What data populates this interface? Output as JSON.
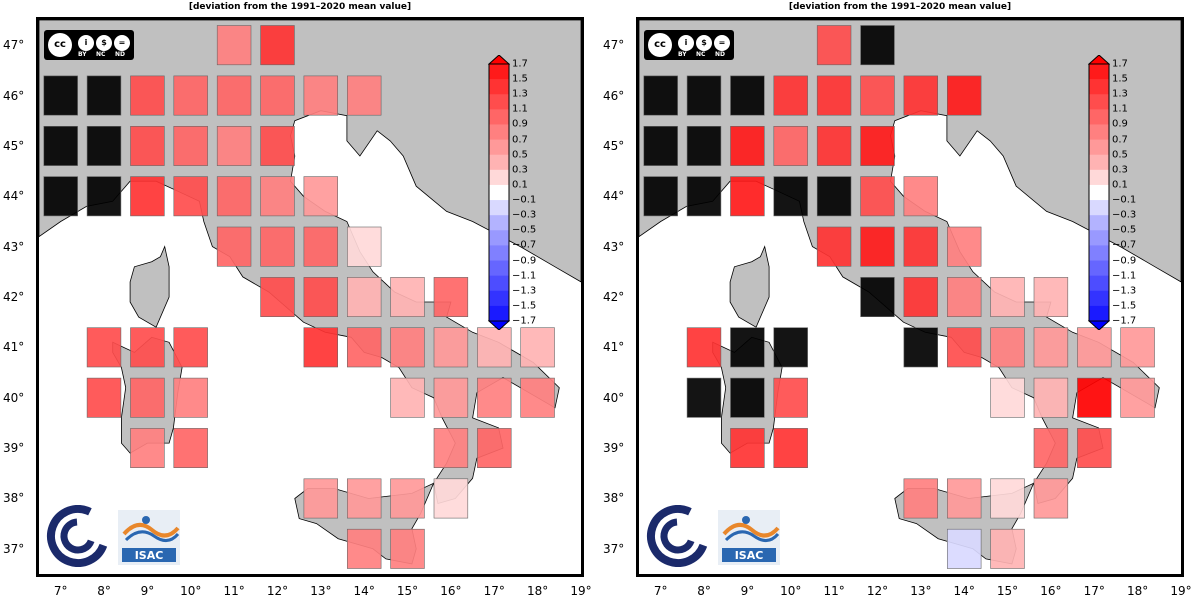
{
  "title": "[deviation from the 1991–2020 mean value]",
  "axes": {
    "x_ticks": [
      "7°",
      "8°",
      "9°",
      "10°",
      "11°",
      "12°",
      "13°",
      "14°",
      "15°",
      "16°",
      "17°",
      "18°",
      "19°"
    ],
    "y_ticks": [
      "47°",
      "46°",
      "45°",
      "44°",
      "43°",
      "42°",
      "41°",
      "40°",
      "39°",
      "38°",
      "37°"
    ],
    "lon_range": [
      6.5,
      19
    ],
    "lat_range": [
      36.5,
      47.5
    ]
  },
  "colorbar": {
    "labels": [
      "1.7",
      "1.5",
      "1.3",
      "1.1",
      "0.9",
      "0.7",
      "0.5",
      "0.3",
      "0.1",
      "−0.1",
      "−0.3",
      "−0.5",
      "−0.7",
      "−0.9",
      "−1.1",
      "−1.3",
      "−1.5",
      "−1.7"
    ],
    "colors": [
      "#ff0000",
      "#ff1a1a",
      "#ff3333",
      "#ff4d4d",
      "#ff6666",
      "#ff8080",
      "#ff9999",
      "#ffb3b3",
      "#ffd9d9",
      "#ffffff",
      "#d9d9ff",
      "#b3b3ff",
      "#9999ff",
      "#8080ff",
      "#6666ff",
      "#4d4dff",
      "#3333ff",
      "#1a1aff",
      "#0000ff"
    ]
  },
  "license": {
    "badge": "cc",
    "labels": [
      "BY",
      "NC",
      "ND"
    ]
  },
  "logos": {
    "right_logo_text": "ISAC"
  },
  "colors": {
    "land": "#c0c0c0",
    "sea": "#ffffff",
    "missing": "#000000"
  },
  "chart_data": [
    {
      "type": "heatmap",
      "title": "[deviation from the 1991–2020 mean value]",
      "cells": [
        {
          "lon": 11,
          "lat": 47,
          "value": 0.7
        },
        {
          "lon": 12,
          "lat": 47,
          "value": 1.3
        },
        {
          "lon": 7,
          "lat": 46,
          "value": null
        },
        {
          "lon": 8,
          "lat": 46,
          "value": null
        },
        {
          "lon": 9,
          "lat": 46,
          "value": 1.1
        },
        {
          "lon": 10,
          "lat": 46,
          "value": 1.0
        },
        {
          "lon": 11,
          "lat": 46,
          "value": 1.0
        },
        {
          "lon": 12,
          "lat": 46,
          "value": 1.0
        },
        {
          "lon": 13,
          "lat": 46,
          "value": 0.7
        },
        {
          "lon": 14,
          "lat": 46,
          "value": 0.8
        },
        {
          "lon": 7,
          "lat": 45,
          "value": null
        },
        {
          "lon": 8,
          "lat": 45,
          "value": null
        },
        {
          "lon": 9,
          "lat": 45,
          "value": 1.1
        },
        {
          "lon": 10,
          "lat": 45,
          "value": 1.0
        },
        {
          "lon": 11,
          "lat": 45,
          "value": 0.7
        },
        {
          "lon": 12,
          "lat": 45,
          "value": 1.2
        },
        {
          "lon": 7,
          "lat": 44,
          "value": null
        },
        {
          "lon": 8,
          "lat": 44,
          "value": null
        },
        {
          "lon": 9,
          "lat": 44,
          "value": 1.3
        },
        {
          "lon": 10,
          "lat": 44,
          "value": 1.1
        },
        {
          "lon": 11,
          "lat": 44,
          "value": 0.9
        },
        {
          "lon": 12,
          "lat": 44,
          "value": 0.7
        },
        {
          "lon": 13,
          "lat": 44,
          "value": 0.5
        },
        {
          "lon": 11,
          "lat": 43,
          "value": 0.9
        },
        {
          "lon": 12,
          "lat": 43,
          "value": 0.9
        },
        {
          "lon": 13,
          "lat": 43,
          "value": 0.9
        },
        {
          "lon": 14,
          "lat": 43,
          "value": 0.2
        },
        {
          "lon": 12,
          "lat": 42,
          "value": 1.1
        },
        {
          "lon": 13,
          "lat": 42,
          "value": 1.1
        },
        {
          "lon": 14,
          "lat": 42,
          "value": 0.4
        },
        {
          "lon": 15,
          "lat": 42,
          "value": 0.3
        },
        {
          "lon": 16,
          "lat": 42,
          "value": 0.9
        },
        {
          "lon": 8,
          "lat": 41,
          "value": 1.1
        },
        {
          "lon": 9,
          "lat": 41,
          "value": 1.1
        },
        {
          "lon": 10,
          "lat": 41,
          "value": 1.1
        },
        {
          "lon": 13,
          "lat": 41,
          "value": 1.3
        },
        {
          "lon": 14,
          "lat": 41,
          "value": 1.0
        },
        {
          "lon": 15,
          "lat": 41,
          "value": 0.8
        },
        {
          "lon": 16,
          "lat": 41,
          "value": 0.5
        },
        {
          "lon": 17,
          "lat": 41,
          "value": 0.3
        },
        {
          "lon": 18,
          "lat": 41,
          "value": 0.4
        },
        {
          "lon": 8,
          "lat": 40,
          "value": 1.1
        },
        {
          "lon": 9,
          "lat": 40,
          "value": 1.0
        },
        {
          "lon": 10,
          "lat": 40,
          "value": 0.8
        },
        {
          "lon": 15,
          "lat": 40,
          "value": 0.4
        },
        {
          "lon": 16,
          "lat": 40,
          "value": 0.6
        },
        {
          "lon": 17,
          "lat": 40,
          "value": 0.8
        },
        {
          "lon": 18,
          "lat": 40,
          "value": 0.7
        },
        {
          "lon": 9,
          "lat": 39,
          "value": 0.8
        },
        {
          "lon": 10,
          "lat": 39,
          "value": 1.0
        },
        {
          "lon": 16,
          "lat": 39,
          "value": 0.7
        },
        {
          "lon": 17,
          "lat": 39,
          "value": 0.9
        },
        {
          "lon": 13,
          "lat": 38,
          "value": 0.6
        },
        {
          "lon": 14,
          "lat": 38,
          "value": 0.6
        },
        {
          "lon": 15,
          "lat": 38,
          "value": 0.6
        },
        {
          "lon": 16,
          "lat": 38,
          "value": 0.2
        },
        {
          "lon": 14,
          "lat": 37,
          "value": 0.7
        },
        {
          "lon": 15,
          "lat": 37,
          "value": 0.8
        }
      ]
    },
    {
      "type": "heatmap",
      "title": "[deviation from the 1991–2020 mean value]",
      "cells": [
        {
          "lon": 11,
          "lat": 47,
          "value": 1.1
        },
        {
          "lon": 12,
          "lat": 47,
          "value": null
        },
        {
          "lon": 7,
          "lat": 46,
          "value": null
        },
        {
          "lon": 8,
          "lat": 46,
          "value": null
        },
        {
          "lon": 9,
          "lat": 46,
          "value": null
        },
        {
          "lon": 10,
          "lat": 46,
          "value": 1.4
        },
        {
          "lon": 11,
          "lat": 46,
          "value": 1.4
        },
        {
          "lon": 12,
          "lat": 46,
          "value": 1.2
        },
        {
          "lon": 13,
          "lat": 46,
          "value": 1.4
        },
        {
          "lon": 14,
          "lat": 46,
          "value": 1.5
        },
        {
          "lon": 7,
          "lat": 45,
          "value": null
        },
        {
          "lon": 8,
          "lat": 45,
          "value": null
        },
        {
          "lon": 9,
          "lat": 45,
          "value": 1.5
        },
        {
          "lon": 10,
          "lat": 45,
          "value": 1.0
        },
        {
          "lon": 11,
          "lat": 45,
          "value": 1.3
        },
        {
          "lon": 12,
          "lat": 45,
          "value": 1.5
        },
        {
          "lon": 7,
          "lat": 44,
          "value": null
        },
        {
          "lon": 8,
          "lat": 44,
          "value": null
        },
        {
          "lon": 9,
          "lat": 44,
          "value": 1.6
        },
        {
          "lon": 10,
          "lat": 44,
          "value": null
        },
        {
          "lon": 11,
          "lat": 44,
          "value": null
        },
        {
          "lon": 12,
          "lat": 44,
          "value": 1.1
        },
        {
          "lon": 13,
          "lat": 44,
          "value": 0.7
        },
        {
          "lon": 11,
          "lat": 43,
          "value": 1.4
        },
        {
          "lon": 12,
          "lat": 43,
          "value": 1.5
        },
        {
          "lon": 13,
          "lat": 43,
          "value": 1.3
        },
        {
          "lon": 14,
          "lat": 43,
          "value": 0.8
        },
        {
          "lon": 12,
          "lat": 42,
          "value": null
        },
        {
          "lon": 13,
          "lat": 42,
          "value": 1.4
        },
        {
          "lon": 14,
          "lat": 42,
          "value": 0.7
        },
        {
          "lon": 15,
          "lat": 42,
          "value": 0.3
        },
        {
          "lon": 16,
          "lat": 42,
          "value": 0.4
        },
        {
          "lon": 8,
          "lat": 41,
          "value": 1.4
        },
        {
          "lon": 9,
          "lat": 41,
          "value": null
        },
        {
          "lon": 10,
          "lat": 41,
          "value": null
        },
        {
          "lon": 13,
          "lat": 41,
          "value": null
        },
        {
          "lon": 14,
          "lat": 41,
          "value": 1.1
        },
        {
          "lon": 15,
          "lat": 41,
          "value": 0.8
        },
        {
          "lon": 16,
          "lat": 41,
          "value": 0.6
        },
        {
          "lon": 17,
          "lat": 41,
          "value": 0.6
        },
        {
          "lon": 18,
          "lat": 41,
          "value": 0.5
        },
        {
          "lon": 8,
          "lat": 40,
          "value": null
        },
        {
          "lon": 9,
          "lat": 40,
          "value": null
        },
        {
          "lon": 10,
          "lat": 40,
          "value": 1.2
        },
        {
          "lon": 15,
          "lat": 40,
          "value": 0.2
        },
        {
          "lon": 16,
          "lat": 40,
          "value": 0.3
        },
        {
          "lon": 17,
          "lat": 40,
          "value": 1.7
        },
        {
          "lon": 18,
          "lat": 40,
          "value": 0.6
        },
        {
          "lon": 9,
          "lat": 39,
          "value": 1.4
        },
        {
          "lon": 10,
          "lat": 39,
          "value": 1.3
        },
        {
          "lon": 16,
          "lat": 39,
          "value": 0.9
        },
        {
          "lon": 17,
          "lat": 39,
          "value": 1.2
        },
        {
          "lon": 13,
          "lat": 38,
          "value": 0.8
        },
        {
          "lon": 14,
          "lat": 38,
          "value": 0.6
        },
        {
          "lon": 15,
          "lat": 38,
          "value": 0.2
        },
        {
          "lon": 16,
          "lat": 38,
          "value": 0.6
        },
        {
          "lon": 14,
          "lat": 37,
          "value": -0.2
        },
        {
          "lon": 15,
          "lat": 37,
          "value": 0.3
        }
      ]
    }
  ]
}
